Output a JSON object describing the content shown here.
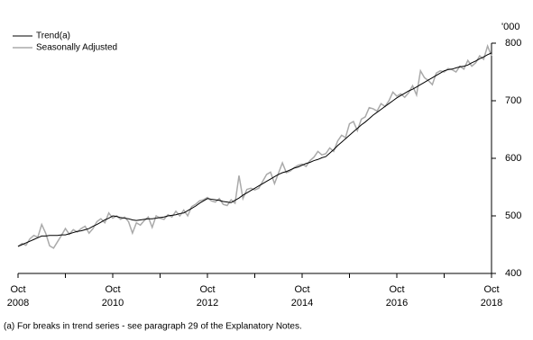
{
  "chart_data": {
    "type": "line",
    "unit_label": "'000",
    "footnote": "(a) For breaks in trend series - see paragraph 29 of the Explanatory Notes.",
    "x": [
      "2008-10",
      "2008-11",
      "2008-12",
      "2009-01",
      "2009-02",
      "2009-03",
      "2009-04",
      "2009-05",
      "2009-06",
      "2009-07",
      "2009-08",
      "2009-09",
      "2009-10",
      "2009-11",
      "2009-12",
      "2010-01",
      "2010-02",
      "2010-03",
      "2010-04",
      "2010-05",
      "2010-06",
      "2010-07",
      "2010-08",
      "2010-09",
      "2010-10",
      "2010-11",
      "2010-12",
      "2011-01",
      "2011-02",
      "2011-03",
      "2011-04",
      "2011-05",
      "2011-06",
      "2011-07",
      "2011-08",
      "2011-09",
      "2011-10",
      "2011-11",
      "2011-12",
      "2012-01",
      "2012-02",
      "2012-03",
      "2012-04",
      "2012-05",
      "2012-06",
      "2012-07",
      "2012-08",
      "2012-09",
      "2012-10",
      "2012-11",
      "2012-12",
      "2013-01",
      "2013-02",
      "2013-03",
      "2013-04",
      "2013-05",
      "2013-06",
      "2013-07",
      "2013-08",
      "2013-09",
      "2013-10",
      "2013-11",
      "2013-12",
      "2014-01",
      "2014-02",
      "2014-03",
      "2014-04",
      "2014-05",
      "2014-06",
      "2014-07",
      "2014-08",
      "2014-09",
      "2014-10",
      "2014-11",
      "2014-12",
      "2015-01",
      "2015-02",
      "2015-03",
      "2015-04",
      "2015-05",
      "2015-06",
      "2015-07",
      "2015-08",
      "2015-09",
      "2015-10",
      "2015-11",
      "2015-12",
      "2016-01",
      "2016-02",
      "2016-03",
      "2016-04",
      "2016-05",
      "2016-06",
      "2016-07",
      "2016-08",
      "2016-09",
      "2016-10",
      "2016-11",
      "2016-12",
      "2017-01",
      "2017-02",
      "2017-03",
      "2017-04",
      "2017-05",
      "2017-06",
      "2017-07",
      "2017-08",
      "2017-09",
      "2017-10",
      "2017-11",
      "2017-12",
      "2018-01",
      "2018-02",
      "2018-03",
      "2018-04",
      "2018-05",
      "2018-06",
      "2018-07",
      "2018-08",
      "2018-09",
      "2018-10"
    ],
    "series": [
      {
        "name": "Trend(a)",
        "color": "#000000",
        "values": [
          447,
          450,
          453,
          456,
          459,
          462,
          465,
          465,
          466,
          466,
          466,
          467,
          467,
          469,
          471,
          473,
          474,
          476,
          478,
          482,
          485,
          489,
          493,
          496,
          500,
          499,
          497,
          496,
          495,
          493,
          492,
          493,
          494,
          495,
          495,
          496,
          497,
          498,
          500,
          501,
          502,
          504,
          505,
          509,
          513,
          517,
          522,
          526,
          530,
          529,
          528,
          527,
          525,
          524,
          523,
          527,
          531,
          536,
          540,
          544,
          548,
          552,
          556,
          560,
          564,
          568,
          572,
          575,
          577,
          580,
          583,
          585,
          588,
          591,
          593,
          596,
          598,
          601,
          603,
          609,
          615,
          622,
          628,
          634,
          640,
          646,
          652,
          658,
          663,
          669,
          675,
          680,
          685,
          690,
          695,
          700,
          705,
          709,
          713,
          717,
          720,
          724,
          728,
          732,
          736,
          740,
          744,
          748,
          752,
          754,
          755,
          757,
          759,
          760,
          762,
          766,
          769,
          773,
          776,
          780,
          783
        ]
      },
      {
        "name": "Seasonally Adjusted",
        "color": "#aaaaaa",
        "values": [
          447,
          452,
          449,
          460,
          466,
          463,
          485,
          470,
          448,
          444,
          455,
          466,
          478,
          468,
          476,
          472,
          478,
          482,
          470,
          478,
          490,
          495,
          488,
          505,
          496,
          500,
          494,
          498,
          490,
          470,
          488,
          484,
          492,
          498,
          480,
          500,
          496,
          494,
          502,
          498,
          508,
          500,
          510,
          500,
          516,
          520,
          526,
          528,
          532,
          526,
          524,
          530,
          520,
          518,
          528,
          522,
          570,
          530,
          546,
          548,
          545,
          548,
          560,
          572,
          576,
          556,
          574,
          592,
          575,
          578,
          584,
          588,
          590,
          586,
          596,
          602,
          612,
          606,
          608,
          618,
          612,
          630,
          640,
          636,
          660,
          664,
          648,
          668,
          672,
          688,
          686,
          682,
          695,
          690,
          700,
          715,
          708,
          712,
          706,
          714,
          726,
          710,
          752,
          740,
          735,
          728,
          748,
          752,
          750,
          756,
          754,
          750,
          760,
          755,
          770,
          760,
          766,
          778,
          772,
          795,
          778
        ]
      }
    ],
    "xlim": [
      "2008-10",
      "2018-10"
    ],
    "xticks": [
      {
        "value": "2008-10",
        "label": [
          "Oct",
          "2008"
        ]
      },
      {
        "value": "2009-10",
        "label": null
      },
      {
        "value": "2010-10",
        "label": [
          "Oct",
          "2010"
        ]
      },
      {
        "value": "2011-10",
        "label": null
      },
      {
        "value": "2012-10",
        "label": [
          "Oct",
          "2012"
        ]
      },
      {
        "value": "2013-10",
        "label": null
      },
      {
        "value": "2014-10",
        "label": [
          "Oct",
          "2014"
        ]
      },
      {
        "value": "2015-10",
        "label": null
      },
      {
        "value": "2016-10",
        "label": [
          "Oct",
          "2016"
        ]
      },
      {
        "value": "2017-10",
        "label": null
      },
      {
        "value": "2018-10",
        "label": [
          "Oct",
          "2018"
        ]
      }
    ],
    "ylim": [
      400,
      800
    ],
    "yticks": [
      400,
      500,
      600,
      700,
      800
    ],
    "grid": false
  }
}
